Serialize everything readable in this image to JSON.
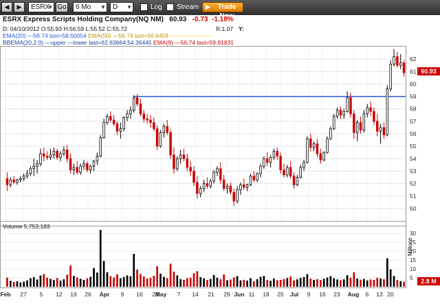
{
  "toolbar": {
    "symbol": "ESRX",
    "go_label": "Go",
    "period": "6 Mo",
    "interval": "D",
    "log_label": "Log",
    "stream_label": "Stream",
    "trade_label": "Trade Now"
  },
  "quote": {
    "name": "ESRX Express Scripts Holding Company(NQ NM)",
    "last": "60.93",
    "change": "-0.73",
    "change_pct": "-1.18%",
    "ohlc": "D: 04/10/2012 O:55.93 H:56.59 L:55.52 C:55.72",
    "r_value": "R:1.07",
    "y_label": "Y:"
  },
  "indicators": {
    "ema20": "EMA(20) —56.74 last=58.50054",
    "ema50": "EMA(50) —56.74 last=56.6458",
    "ema50_extra": "———————",
    "bbema": "BBEMA(20,2.0) —upper —lower last=62.63664;54.36445",
    "ema9": "EMA(9) —56.74 last=59.91831"
  },
  "colors": {
    "up": "#000000",
    "down": "#cc0000",
    "line": "#2b55e0",
    "ema50": "#e6c200",
    "price_badge": "#cc0000"
  },
  "volume": {
    "label": "Volume 5,753,183",
    "unit_label": "Millions",
    "badge": "2.8 M"
  },
  "price_badge": "60.93",
  "chart_data": {
    "type": "candlestick",
    "ylim": [
      49,
      63
    ],
    "yticks": [
      50,
      51,
      52,
      53,
      54,
      55,
      56,
      57,
      58,
      59,
      60,
      61,
      62
    ],
    "horizontal_line": 59.0,
    "xticks": [
      "Feb",
      "27",
      "5",
      "12",
      "19",
      "26",
      "Apr",
      "9",
      "16",
      "23",
      "May",
      "7",
      "14",
      "21",
      "29",
      "Jun",
      "11",
      "18",
      "25",
      "Jul",
      "9",
      "16",
      "23",
      "Aug",
      "6",
      "13",
      "20"
    ],
    "volume": {
      "ylabel": "Millions",
      "ylim": [
        0,
        32
      ],
      "yticks": [
        5,
        10,
        15,
        20,
        25,
        30
      ]
    },
    "candles": [
      [
        52.4,
        52.9,
        51.4,
        51.9
      ],
      [
        51.9,
        52.5,
        51.7,
        52.3
      ],
      [
        52.3,
        52.6,
        52.0,
        52.1
      ],
      [
        52.1,
        52.4,
        51.9,
        52.3
      ],
      [
        52.3,
        52.6,
        52.1,
        52.4
      ],
      [
        52.4,
        52.8,
        52.2,
        52.6
      ],
      [
        52.6,
        53.1,
        52.4,
        52.8
      ],
      [
        52.8,
        53.4,
        52.6,
        53.2
      ],
      [
        53.2,
        54.0,
        52.6,
        53.4
      ],
      [
        53.4,
        53.9,
        52.8,
        53.6
      ],
      [
        53.6,
        54.8,
        53.4,
        54.4
      ],
      [
        54.4,
        54.9,
        53.8,
        54.2
      ],
      [
        54.2,
        54.6,
        53.9,
        54.1
      ],
      [
        54.1,
        54.8,
        53.9,
        54.3
      ],
      [
        54.3,
        54.9,
        54.0,
        54.6
      ],
      [
        54.6,
        54.8,
        53.9,
        54.1
      ],
      [
        54.1,
        54.6,
        53.8,
        54.4
      ],
      [
        54.4,
        55.0,
        54.2,
        54.7
      ],
      [
        54.7,
        55.1,
        53.7,
        54.0
      ],
      [
        54.0,
        54.4,
        52.8,
        53.1
      ],
      [
        53.1,
        53.6,
        52.7,
        53.3
      ],
      [
        53.3,
        53.8,
        52.7,
        52.9
      ],
      [
        52.9,
        53.6,
        52.7,
        53.4
      ],
      [
        53.4,
        53.9,
        53.1,
        53.6
      ],
      [
        53.6,
        53.8,
        52.9,
        53.1
      ],
      [
        53.1,
        53.5,
        52.8,
        53.4
      ],
      [
        53.4,
        53.9,
        53.0,
        53.8
      ],
      [
        53.8,
        54.5,
        53.5,
        54.2
      ],
      [
        54.2,
        55.9,
        54.1,
        55.7
      ],
      [
        55.7,
        57.2,
        55.6,
        56.9
      ],
      [
        56.9,
        57.6,
        56.7,
        57.4
      ],
      [
        57.4,
        57.8,
        56.9,
        57.1
      ],
      [
        57.1,
        57.5,
        56.6,
        56.8
      ],
      [
        56.8,
        57.0,
        55.9,
        56.2
      ],
      [
        56.2,
        56.9,
        55.6,
        56.4
      ],
      [
        56.4,
        57.4,
        56.2,
        57.3
      ],
      [
        57.3,
        57.9,
        57.0,
        57.6
      ],
      [
        57.6,
        58.2,
        57.2,
        57.9
      ],
      [
        57.9,
        59.1,
        57.7,
        58.9
      ],
      [
        58.9,
        59.2,
        58.2,
        58.4
      ],
      [
        58.4,
        58.8,
        57.4,
        57.6
      ],
      [
        57.6,
        57.9,
        56.9,
        57.2
      ],
      [
        57.2,
        57.6,
        56.8,
        57.1
      ],
      [
        57.1,
        57.5,
        56.5,
        56.9
      ],
      [
        56.9,
        57.3,
        56.2,
        56.4
      ],
      [
        56.4,
        56.7,
        54.7,
        55.0
      ],
      [
        55.0,
        56.3,
        54.9,
        56.1
      ],
      [
        56.1,
        56.8,
        55.7,
        56.6
      ],
      [
        56.6,
        57.1,
        55.9,
        56.1
      ],
      [
        56.1,
        56.4,
        54.0,
        54.3
      ],
      [
        54.3,
        54.9,
        52.8,
        53.2
      ],
      [
        53.2,
        54.2,
        53.0,
        54.0
      ],
      [
        54.0,
        54.7,
        53.6,
        54.3
      ],
      [
        54.3,
        54.8,
        53.8,
        54.0
      ],
      [
        54.0,
        54.4,
        53.0,
        53.3
      ],
      [
        53.3,
        53.8,
        52.6,
        53.0
      ],
      [
        53.0,
        53.4,
        51.8,
        52.1
      ],
      [
        52.1,
        52.6,
        50.8,
        51.2
      ],
      [
        51.2,
        51.8,
        50.9,
        51.6
      ],
      [
        51.6,
        52.3,
        51.3,
        52.0
      ],
      [
        52.0,
        52.5,
        51.6,
        51.8
      ],
      [
        51.8,
        52.4,
        51.6,
        52.2
      ],
      [
        52.2,
        53.1,
        52.0,
        52.9
      ],
      [
        52.9,
        53.4,
        52.6,
        53.2
      ],
      [
        53.2,
        53.7,
        52.0,
        52.3
      ],
      [
        52.3,
        52.7,
        51.4,
        51.6
      ],
      [
        51.6,
        52.0,
        51.2,
        51.8
      ],
      [
        51.8,
        52.1,
        51.1,
        51.3
      ],
      [
        51.3,
        51.6,
        50.2,
        50.6
      ],
      [
        50.6,
        51.8,
        50.4,
        51.5
      ],
      [
        51.5,
        52.1,
        51.1,
        51.9
      ],
      [
        51.9,
        52.4,
        51.5,
        51.7
      ],
      [
        51.7,
        52.0,
        51.4,
        51.9
      ],
      [
        51.9,
        52.8,
        51.8,
        52.6
      ],
      [
        52.6,
        53.0,
        52.1,
        52.3
      ],
      [
        52.3,
        52.9,
        52.1,
        52.8
      ],
      [
        52.8,
        53.6,
        52.5,
        53.4
      ],
      [
        53.4,
        54.2,
        53.2,
        54.0
      ],
      [
        54.0,
        54.5,
        53.4,
        53.7
      ],
      [
        53.7,
        54.3,
        53.3,
        54.1
      ],
      [
        54.1,
        54.8,
        53.9,
        54.6
      ],
      [
        54.6,
        54.9,
        53.9,
        54.2
      ],
      [
        54.2,
        54.5,
        52.8,
        53.1
      ],
      [
        53.1,
        53.6,
        52.5,
        52.7
      ],
      [
        52.7,
        53.5,
        52.5,
        53.3
      ],
      [
        53.3,
        53.8,
        52.4,
        52.6
      ],
      [
        52.6,
        52.9,
        51.6,
        51.9
      ],
      [
        51.9,
        52.7,
        51.8,
        52.5
      ],
      [
        52.5,
        53.5,
        52.4,
        53.3
      ],
      [
        53.3,
        53.9,
        53.0,
        53.7
      ],
      [
        53.7,
        55.8,
        53.6,
        55.6
      ],
      [
        55.6,
        56.0,
        54.6,
        54.9
      ],
      [
        54.9,
        55.4,
        54.6,
        55.2
      ],
      [
        55.2,
        55.6,
        54.1,
        54.4
      ],
      [
        54.4,
        54.8,
        53.6,
        53.9
      ],
      [
        53.9,
        54.6,
        53.8,
        54.5
      ],
      [
        54.5,
        55.8,
        54.4,
        55.6
      ],
      [
        55.6,
        56.6,
        55.5,
        56.4
      ],
      [
        56.4,
        57.6,
        56.3,
        57.4
      ],
      [
        57.4,
        58.1,
        57.2,
        57.9
      ],
      [
        57.9,
        58.2,
        57.2,
        57.5
      ],
      [
        57.5,
        58.0,
        57.2,
        57.8
      ],
      [
        57.8,
        59.4,
        57.7,
        58.9
      ],
      [
        58.9,
        59.3,
        57.3,
        57.6
      ],
      [
        57.6,
        57.9,
        55.6,
        56.1
      ],
      [
        56.1,
        57.1,
        55.4,
        56.9
      ],
      [
        56.9,
        57.4,
        56.0,
        56.3
      ],
      [
        56.3,
        57.9,
        56.1,
        57.6
      ],
      [
        57.6,
        58.4,
        57.3,
        58.1
      ],
      [
        58.1,
        58.6,
        57.4,
        57.8
      ],
      [
        57.8,
        58.1,
        56.7,
        57.0
      ],
      [
        57.0,
        57.6,
        55.8,
        56.2
      ],
      [
        56.2,
        56.8,
        55.2,
        56.5
      ],
      [
        56.5,
        56.9,
        55.6,
        55.9
      ],
      [
        55.9,
        59.9,
        55.8,
        59.6
      ],
      [
        59.6,
        61.9,
        59.4,
        61.6
      ],
      [
        61.6,
        62.8,
        61.4,
        62.2
      ],
      [
        62.2,
        62.6,
        61.3,
        61.5
      ],
      [
        61.5,
        62.4,
        61.2,
        61.7
      ],
      [
        61.7,
        61.9,
        60.6,
        60.9
      ]
    ],
    "volumes": [
      5.2,
      3.4,
      2.7,
      3.1,
      2.4,
      2.9,
      3.6,
      4.8,
      5.4,
      4.1,
      6.3,
      7.2,
      5.1,
      4.4,
      3.8,
      4.9,
      3.5,
      4.2,
      6.8,
      12.0,
      6.1,
      5.3,
      4.5,
      3.9,
      4.7,
      5.6,
      10.5,
      8.0,
      32.0,
      14.5,
      8.2,
      6.0,
      5.2,
      7.0,
      4.8,
      5.5,
      6.4,
      5.9,
      18.5,
      9.6,
      7.2,
      5.8,
      4.6,
      5.0,
      6.2,
      11.5,
      7.4,
      5.6,
      4.9,
      13.0,
      8.5,
      6.4,
      4.3,
      3.9,
      4.8,
      5.1,
      7.6,
      8.8,
      5.4,
      4.7,
      3.8,
      4.4,
      6.6,
      5.1,
      4.2,
      6.9,
      3.7,
      4.1,
      5.3,
      6.0,
      3.6,
      3.9,
      3.5,
      4.8,
      3.2,
      4.3,
      5.6,
      6.1,
      3.8,
      3.4,
      4.6,
      3.7,
      3.9,
      4.4,
      4.9,
      5.8,
      3.6,
      4.2,
      5.0,
      5.5,
      7.1,
      4.6,
      3.9,
      4.3,
      3.8,
      4.5,
      5.2,
      6.0,
      4.8,
      4.1,
      3.7,
      4.2,
      6.5,
      5.0,
      8.2,
      4.6,
      4.0,
      4.4,
      3.6,
      4.1,
      3.9,
      5.1,
      4.7,
      4.3,
      16.0,
      9.8,
      6.1,
      3.8,
      3.2,
      2.8
    ]
  }
}
